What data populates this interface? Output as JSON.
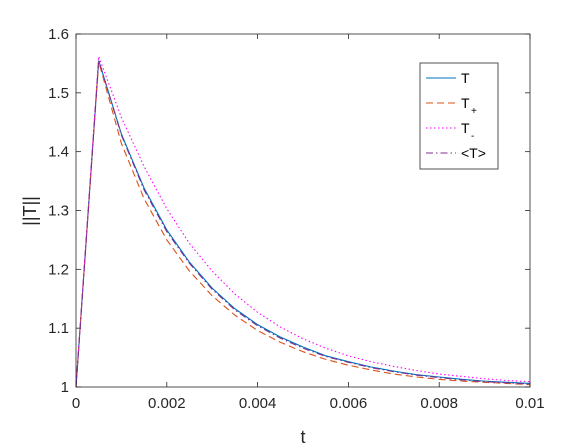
{
  "chart_data": {
    "type": "line",
    "xlabel": "t",
    "ylabel": "||T||",
    "xlim": [
      0,
      0.01
    ],
    "ylim": [
      1,
      1.6
    ],
    "xticks": [
      "0",
      "0.002",
      "0.004",
      "0.006",
      "0.008",
      "0.01"
    ],
    "yticks": [
      "1",
      "1.1",
      "1.2",
      "1.3",
      "1.4",
      "1.5",
      "1.6"
    ],
    "grid": false,
    "legend_placement": "top-right",
    "series": [
      {
        "name": "T",
        "color": "#0072BD",
        "style": "solid",
        "x": [
          0,
          0.0005,
          0.001,
          0.0015,
          0.002,
          0.0025,
          0.003,
          0.0035,
          0.004,
          0.0045,
          0.005,
          0.0055,
          0.006,
          0.0065,
          0.007,
          0.0075,
          0.008,
          0.0085,
          0.009,
          0.0095,
          0.01
        ],
        "y": [
          1.0,
          1.555,
          1.43,
          1.338,
          1.267,
          1.212,
          1.168,
          1.133,
          1.106,
          1.085,
          1.068,
          1.053,
          1.043,
          1.034,
          1.027,
          1.021,
          1.017,
          1.013,
          1.01,
          1.008,
          1.006
        ]
      },
      {
        "name": "T",
        "subscript": "+",
        "color": "#D95319",
        "style": "dashed",
        "x": [
          0,
          0.0005,
          0.001,
          0.0015,
          0.002,
          0.0025,
          0.003,
          0.0035,
          0.004,
          0.0045,
          0.005,
          0.0055,
          0.006,
          0.0065,
          0.007,
          0.0075,
          0.008,
          0.0085,
          0.009,
          0.0095,
          0.01
        ],
        "y": [
          1.0,
          1.553,
          1.414,
          1.32,
          1.25,
          1.197,
          1.155,
          1.122,
          1.096,
          1.076,
          1.06,
          1.047,
          1.037,
          1.029,
          1.022,
          1.017,
          1.013,
          1.01,
          1.008,
          1.006,
          1.004
        ]
      },
      {
        "name": "T",
        "subscript": "-",
        "color": "#FF00FF",
        "style": "dotted",
        "x": [
          0,
          0.0005,
          0.001,
          0.0015,
          0.002,
          0.0025,
          0.003,
          0.0035,
          0.004,
          0.0045,
          0.005,
          0.0055,
          0.006,
          0.0065,
          0.007,
          0.0075,
          0.008,
          0.0085,
          0.009,
          0.0095,
          0.01
        ],
        "y": [
          1.0,
          1.562,
          1.458,
          1.375,
          1.303,
          1.244,
          1.197,
          1.158,
          1.127,
          1.102,
          1.082,
          1.066,
          1.053,
          1.043,
          1.035,
          1.028,
          1.022,
          1.018,
          1.014,
          1.011,
          1.009
        ]
      },
      {
        "name": "<T>",
        "color": "#7E2F8E",
        "style": "dashdot",
        "x": [
          0,
          0.0005,
          0.001,
          0.0015,
          0.002,
          0.0025,
          0.003,
          0.0035,
          0.004,
          0.0045,
          0.005,
          0.0055,
          0.006,
          0.0065,
          0.007,
          0.0075,
          0.008,
          0.0085,
          0.009,
          0.0095,
          0.01
        ],
        "y": [
          1.0,
          1.556,
          1.428,
          1.335,
          1.264,
          1.21,
          1.166,
          1.131,
          1.104,
          1.083,
          1.066,
          1.052,
          1.042,
          1.033,
          1.026,
          1.02,
          1.016,
          1.012,
          1.009,
          1.007,
          1.005
        ]
      }
    ]
  }
}
